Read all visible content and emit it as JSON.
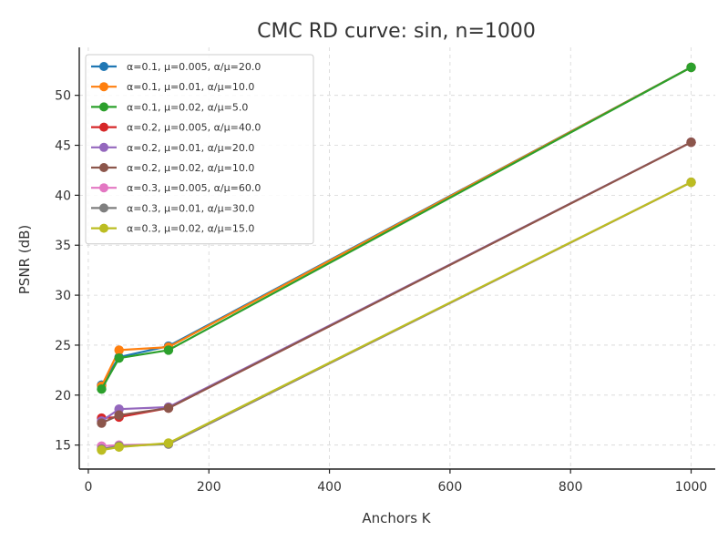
{
  "chart_data": {
    "type": "line",
    "title": "CMC RD curve: sin, n=1000",
    "xlabel": "Anchors K",
    "ylabel": "PSNR (dB)",
    "xlim": [
      -15,
      1040
    ],
    "ylim": [
      12.6,
      54.8
    ],
    "xticks": [
      0,
      200,
      400,
      600,
      800,
      1000
    ],
    "yticks": [
      15,
      20,
      25,
      30,
      35,
      40,
      45,
      50
    ],
    "grid": true,
    "legend_position": "top-left",
    "x": [
      22,
      51,
      133,
      1000
    ],
    "series": [
      {
        "name": "α=0.1, μ=0.005, α/μ=20.0",
        "color": "#1f77b4",
        "values": [
          21.0,
          23.8,
          24.9,
          52.8
        ]
      },
      {
        "name": "α=0.1, μ=0.01, α/μ=10.0",
        "color": "#ff7f0e",
        "values": [
          20.9,
          24.5,
          24.8,
          52.8
        ]
      },
      {
        "name": "α=0.1, μ=0.02, α/μ=5.0",
        "color": "#2ca02c",
        "values": [
          20.6,
          23.7,
          24.5,
          52.8
        ]
      },
      {
        "name": "α=0.2, μ=0.005, α/μ=40.0",
        "color": "#d62728",
        "values": [
          17.7,
          17.8,
          18.7,
          45.3
        ]
      },
      {
        "name": "α=0.2, μ=0.01, α/μ=20.0",
        "color": "#9467bd",
        "values": [
          17.4,
          18.6,
          18.8,
          45.3
        ]
      },
      {
        "name": "α=0.2, μ=0.02, α/μ=10.0",
        "color": "#8c564b",
        "values": [
          17.2,
          18.0,
          18.7,
          45.3
        ]
      },
      {
        "name": "α=0.3, μ=0.005, α/μ=60.0",
        "color": "#e377c2",
        "values": [
          14.9,
          15.0,
          15.1,
          41.3
        ]
      },
      {
        "name": "α=0.3, μ=0.01, α/μ=30.0",
        "color": "#7f7f7f",
        "values": [
          14.6,
          14.9,
          15.1,
          41.3
        ]
      },
      {
        "name": "α=0.3, μ=0.02, α/μ=15.0",
        "color": "#bcbd22",
        "values": [
          14.5,
          14.8,
          15.2,
          41.3
        ]
      }
    ]
  }
}
